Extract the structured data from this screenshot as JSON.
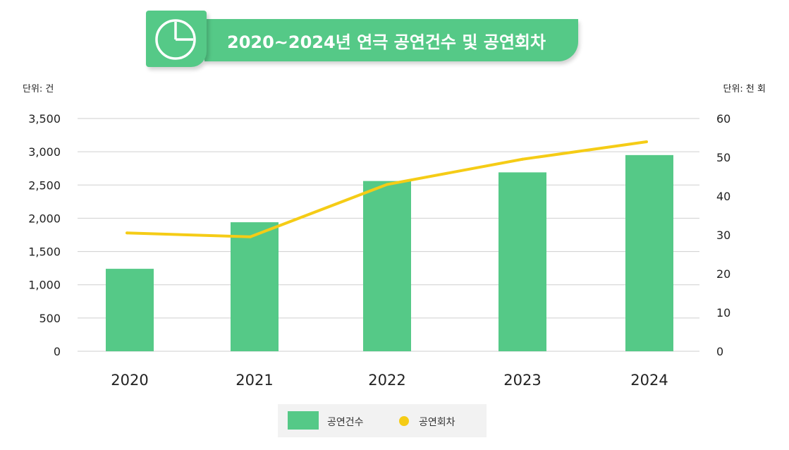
{
  "title": "2020~2024년 연극 공연건수 및 공연회차",
  "colors": {
    "bar": "#55c987",
    "line": "#f5cc16",
    "grid": "#cfcfcf",
    "text": "#222222",
    "banner": "#55c987"
  },
  "icon": "pie-chart-icon",
  "chart_data": {
    "type": "bar",
    "categories": [
      "2020",
      "2021",
      "2022",
      "2023",
      "2024"
    ],
    "series": [
      {
        "name": "공연건수",
        "type": "bar",
        "axis": "left",
        "values": [
          1240,
          1940,
          2560,
          2690,
          2950
        ]
      },
      {
        "name": "공연회차",
        "type": "line",
        "axis": "right",
        "values": [
          30.5,
          29.5,
          43,
          49.5,
          54
        ]
      }
    ],
    "left_axis": {
      "unit_label": "단위:  건",
      "min": 0,
      "max": 3500,
      "ticks": [
        0,
        500,
        1000,
        1500,
        2000,
        2500,
        3000,
        3500
      ],
      "tick_labels": [
        "0",
        "500",
        "1,000",
        "1,500",
        "2,000",
        "2,500",
        "3,000",
        "3,500"
      ]
    },
    "right_axis": {
      "unit_label": "단위: 천 회",
      "min": 0,
      "max": 60,
      "ticks": [
        0,
        10,
        20,
        30,
        40,
        50,
        60
      ],
      "tick_labels": [
        "0",
        "10",
        "20",
        "30",
        "40",
        "50",
        "60"
      ]
    },
    "grid": true,
    "legend_position": "bottom-center"
  },
  "legend": {
    "bar_label": "공연건수",
    "line_label": "공연회차"
  }
}
